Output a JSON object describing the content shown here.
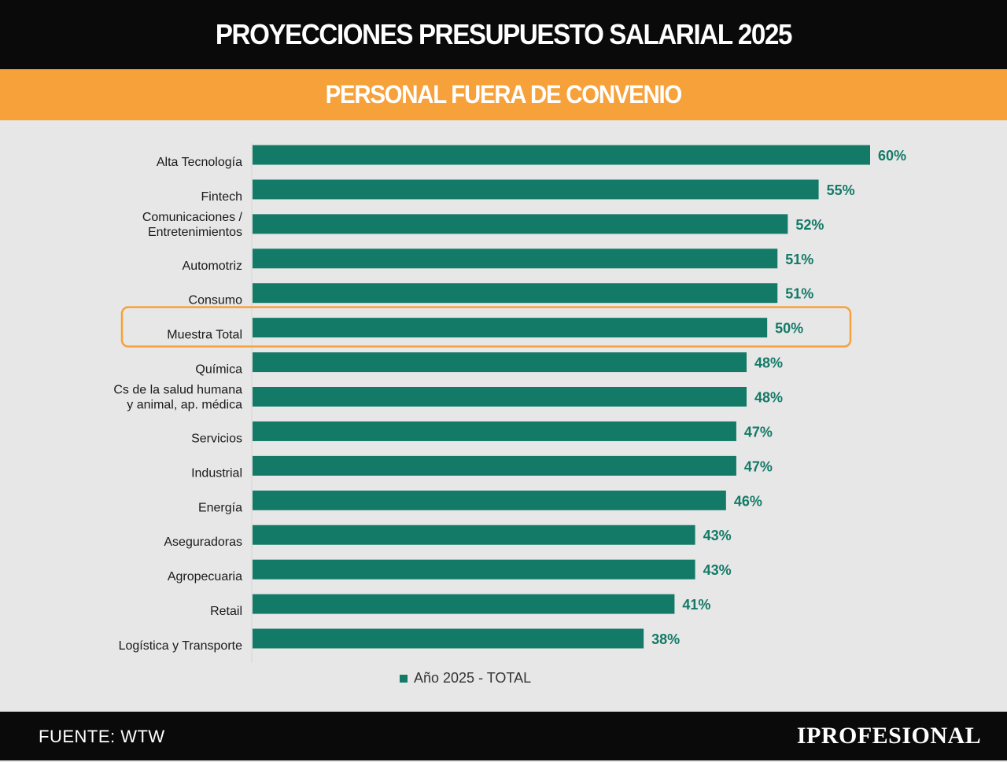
{
  "header": {
    "title": "PROYECCIONES PRESUPUESTO SALARIAL 2025",
    "subtitle": "PERSONAL FUERA DE CONVENIO"
  },
  "footer": {
    "source": "FUENTE: WTW",
    "brand": "IPROFESIONAL"
  },
  "colors": {
    "bar": "#137a67",
    "value_label": "#137a67",
    "highlight": "#f7a13b",
    "header_bg": "#0a0a0a",
    "accent": "#f7a13b",
    "background": "#e7e7e7"
  },
  "chart_data": {
    "type": "bar",
    "orientation": "horizontal",
    "categories": [
      [
        "Alta Tecnología"
      ],
      [
        "Fintech"
      ],
      [
        "Comunicaciones /",
        "Entretenimientos"
      ],
      [
        "Automotriz"
      ],
      [
        "Consumo"
      ],
      [
        "Muestra Total"
      ],
      [
        "Química"
      ],
      [
        "Cs de la salud humana",
        "y animal, ap. médica"
      ],
      [
        "Servicios"
      ],
      [
        "Industrial"
      ],
      [
        "Energía"
      ],
      [
        "Aseguradoras"
      ],
      [
        "Agropecuaria"
      ],
      [
        "Retail"
      ],
      [
        "Logística y Transporte"
      ]
    ],
    "series": [
      {
        "name": "Año 2025 - TOTAL",
        "values": [
          60,
          55,
          52,
          51,
          51,
          50,
          48,
          48,
          47,
          47,
          46,
          43,
          43,
          41,
          38
        ],
        "labels": [
          "60%",
          "55%",
          "52%",
          "51%",
          "51%",
          "50%",
          "48%",
          "48%",
          "47%",
          "47%",
          "46%",
          "43%",
          "43%",
          "41%",
          "38%"
        ]
      }
    ],
    "highlighted_category": "Muestra Total",
    "legend_position": "bottom-center",
    "grid": false
  }
}
